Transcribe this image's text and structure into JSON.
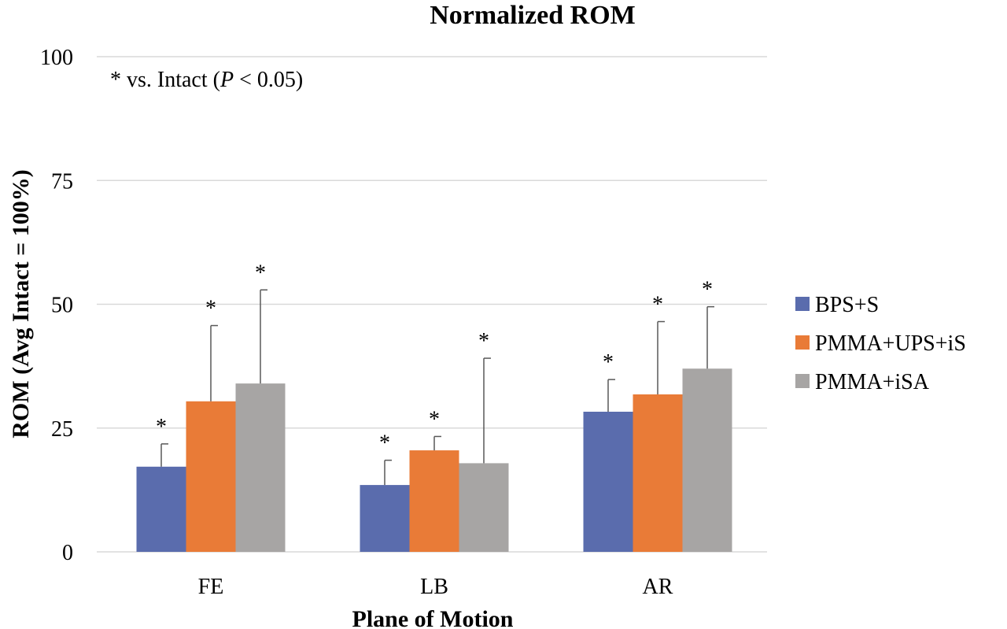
{
  "chart_data": {
    "type": "bar",
    "title": "Normalized ROM",
    "xlabel": "Plane of Motion",
    "ylabel": "ROM (Avg Intact = 100%)",
    "ylim": [
      0,
      100
    ],
    "yticks": [
      "0",
      "25",
      "50",
      "75",
      "100"
    ],
    "grid": true,
    "legend_position": "right",
    "annotation": {
      "prefix": "* vs. Intact (",
      "italic": "P",
      "suffix": " < 0.05)"
    },
    "significance_marker": "*",
    "categories": [
      "FE",
      "LB",
      "AR"
    ],
    "series": [
      {
        "name": "BPS+S",
        "color": "#5a6cad",
        "values": [
          17.2,
          13.5,
          28.3
        ],
        "error": [
          4.6,
          5.0,
          6.5
        ],
        "significant": [
          true,
          true,
          true
        ]
      },
      {
        "name": "PMMA+UPS+iS",
        "color": "#e97b37",
        "values": [
          30.4,
          20.5,
          31.8
        ],
        "error": [
          15.3,
          2.8,
          14.7
        ],
        "significant": [
          true,
          true,
          true
        ]
      },
      {
        "name": "PMMA+iSA",
        "color": "#a7a5a4",
        "values": [
          34.0,
          17.9,
          37.0
        ],
        "error": [
          18.9,
          21.2,
          12.5
        ],
        "significant": [
          true,
          true,
          true
        ]
      }
    ]
  }
}
